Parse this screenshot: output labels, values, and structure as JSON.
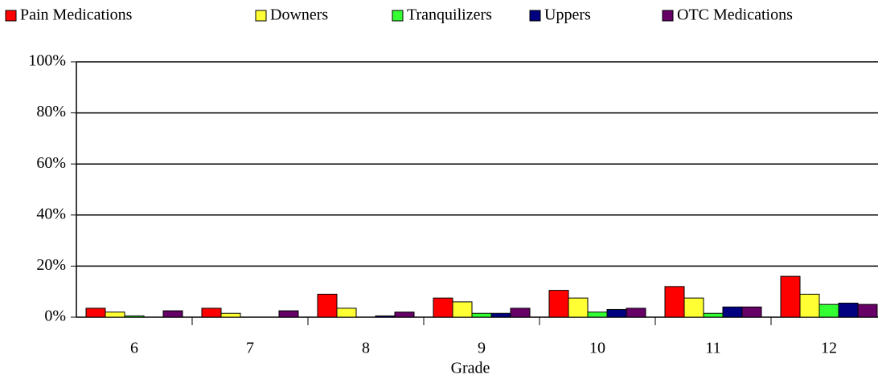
{
  "chart_data": {
    "type": "bar",
    "x_label": "Grade",
    "categories": [
      "6",
      "7",
      "8",
      "9",
      "10",
      "11",
      "12"
    ],
    "series": [
      {
        "name": "Pain Medications",
        "color": "#ff0000",
        "values": [
          3.5,
          3.5,
          9,
          7.5,
          10.5,
          12,
          16
        ]
      },
      {
        "name": "Downers",
        "color": "#ffff33",
        "values": [
          2,
          1.5,
          3.5,
          6,
          7.5,
          7.5,
          9
        ]
      },
      {
        "name": "Tranquilizers",
        "color": "#33ff33",
        "values": [
          0.5,
          0,
          0,
          1.5,
          2,
          1.5,
          5
        ]
      },
      {
        "name": "Uppers",
        "color": "#000080",
        "values": [
          0,
          0,
          0.5,
          1.5,
          3,
          4,
          5.5
        ]
      },
      {
        "name": "OTC Medications",
        "color": "#660066",
        "values": [
          2.5,
          2.5,
          2,
          3.5,
          3.5,
          4,
          5
        ]
      }
    ],
    "ylim": [
      0,
      100
    ],
    "yticks": [
      {
        "value": 0,
        "label": "0%"
      },
      {
        "value": 20,
        "label": "20%"
      },
      {
        "value": 40,
        "label": "40%"
      },
      {
        "value": 60,
        "label": "60%"
      },
      {
        "value": 80,
        "label": "80%"
      },
      {
        "value": 100,
        "label": "100%"
      }
    ],
    "grid": true,
    "legend": "top"
  }
}
